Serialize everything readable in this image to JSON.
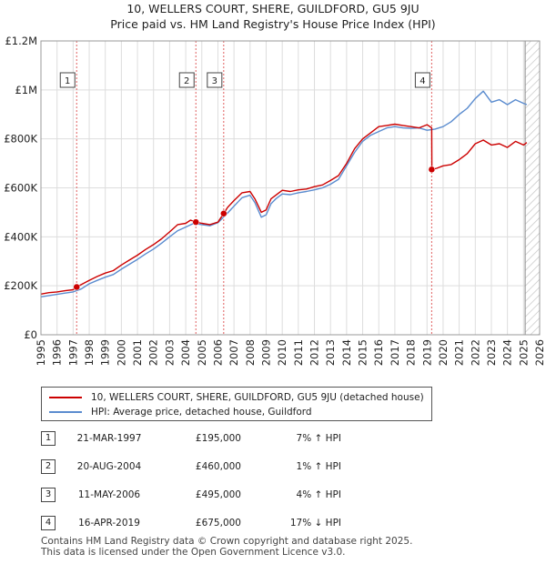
{
  "chart_data": {
    "type": "line",
    "title": "10, WELLERS COURT, SHERE, GUILDFORD, GU5 9JU",
    "subtitle": "Price paid vs. HM Land Registry's House Price Index (HPI)",
    "xlim": [
      1995,
      2026
    ],
    "ylim": [
      0,
      1200000
    ],
    "x_ticks": [
      1995,
      1996,
      1997,
      1998,
      1999,
      2000,
      2001,
      2002,
      2003,
      2004,
      2005,
      2006,
      2007,
      2008,
      2009,
      2010,
      2011,
      2012,
      2013,
      2014,
      2015,
      2016,
      2017,
      2018,
      2019,
      2020,
      2021,
      2022,
      2023,
      2024,
      2025,
      2026
    ],
    "y_ticks": [
      {
        "value": 0,
        "label": "£0"
      },
      {
        "value": 200000,
        "label": "£200K"
      },
      {
        "value": 400000,
        "label": "£400K"
      },
      {
        "value": 600000,
        "label": "£600K"
      },
      {
        "value": 800000,
        "label": "£800K"
      },
      {
        "value": 1000000,
        "label": "£1M"
      },
      {
        "value": 1200000,
        "label": "£1.2M"
      }
    ],
    "grid": true,
    "forecast_from": 2025.1,
    "series": [
      {
        "name": "10, WELLERS COURT, SHERE, GUILDFORD, GU5 9JU (detached house)",
        "color": "#cc0000",
        "x": [
          1995.0,
          1995.5,
          1996.0,
          1996.5,
          1997.0,
          1997.22,
          1998.0,
          1998.5,
          1999.0,
          1999.5,
          2000.0,
          2000.5,
          2001.0,
          2001.5,
          2002.0,
          2002.5,
          2003.0,
          2003.5,
          2004.0,
          2004.3,
          2004.63,
          2005.0,
          2005.5,
          2006.0,
          2006.36,
          2006.6,
          2007.0,
          2007.5,
          2008.0,
          2008.3,
          2008.7,
          2009.0,
          2009.3,
          2009.6,
          2010.0,
          2010.5,
          2011.0,
          2011.5,
          2012.0,
          2012.5,
          2013.0,
          2013.5,
          2014.0,
          2014.5,
          2015.0,
          2015.5,
          2016.0,
          2016.5,
          2017.0,
          2017.5,
          2018.0,
          2018.5,
          2019.0,
          2019.29,
          2019.3,
          2019.6,
          2020.0,
          2020.5,
          2021.0,
          2021.5,
          2022.0,
          2022.5,
          2023.0,
          2023.5,
          2024.0,
          2024.5,
          2025.0,
          2025.2
        ],
        "y": [
          166000,
          172000,
          175000,
          180000,
          184000,
          195000,
          222000,
          238000,
          252000,
          262000,
          285000,
          305000,
          325000,
          348000,
          368000,
          392000,
          420000,
          450000,
          455000,
          468000,
          460000,
          455000,
          450000,
          460000,
          495000,
          520000,
          548000,
          580000,
          585000,
          555000,
          500000,
          510000,
          555000,
          570000,
          590000,
          585000,
          592000,
          595000,
          605000,
          612000,
          630000,
          650000,
          700000,
          760000,
          800000,
          825000,
          850000,
          855000,
          860000,
          855000,
          850000,
          845000,
          858000,
          845000,
          675000,
          680000,
          690000,
          695000,
          715000,
          740000,
          780000,
          795000,
          775000,
          780000,
          765000,
          790000,
          775000,
          785000
        ]
      },
      {
        "name": "HPI: Average price, detached house, Guildford",
        "color": "#5b8ccf",
        "x": [
          1995.0,
          1995.5,
          1996.0,
          1996.5,
          1997.0,
          1997.5,
          1998.0,
          1998.5,
          1999.0,
          1999.5,
          2000.0,
          2000.5,
          2001.0,
          2001.5,
          2002.0,
          2002.5,
          2003.0,
          2003.5,
          2004.0,
          2004.5,
          2005.0,
          2005.5,
          2006.0,
          2006.5,
          2007.0,
          2007.5,
          2008.0,
          2008.3,
          2008.7,
          2009.0,
          2009.3,
          2009.6,
          2010.0,
          2010.5,
          2011.0,
          2011.5,
          2012.0,
          2012.5,
          2013.0,
          2013.5,
          2014.0,
          2014.5,
          2015.0,
          2015.5,
          2016.0,
          2016.5,
          2017.0,
          2017.5,
          2018.0,
          2018.5,
          2019.0,
          2019.5,
          2020.0,
          2020.5,
          2021.0,
          2021.5,
          2022.0,
          2022.5,
          2023.0,
          2023.5,
          2024.0,
          2024.5,
          2025.0,
          2025.2
        ],
        "y": [
          155000,
          160000,
          165000,
          170000,
          175000,
          187000,
          208000,
          222000,
          235000,
          246000,
          268000,
          288000,
          308000,
          330000,
          350000,
          374000,
          400000,
          425000,
          440000,
          455000,
          450000,
          445000,
          458000,
          490000,
          525000,
          560000,
          570000,
          540000,
          480000,
          490000,
          535000,
          555000,
          575000,
          572000,
          580000,
          585000,
          592000,
          600000,
          615000,
          635000,
          690000,
          745000,
          790000,
          815000,
          830000,
          845000,
          850000,
          845000,
          843000,
          845000,
          835000,
          840000,
          850000,
          870000,
          900000,
          925000,
          965000,
          995000,
          950000,
          960000,
          940000,
          960000,
          945000,
          940000
        ]
      }
    ],
    "transactions": [
      {
        "num": "1",
        "x": 1997.22,
        "y": 195000,
        "date": "21-MAR-1997",
        "price": "£195,000",
        "hpi": "7% ↑ HPI"
      },
      {
        "num": "2",
        "x": 2004.63,
        "y": 460000,
        "date": "20-AUG-2004",
        "price": "£460,000",
        "hpi": "1% ↑ HPI"
      },
      {
        "num": "3",
        "x": 2006.36,
        "y": 495000,
        "date": "11-MAY-2006",
        "price": "£495,000",
        "hpi": "4% ↑ HPI"
      },
      {
        "num": "4",
        "x": 2019.29,
        "y": 675000,
        "date": "16-APR-2019",
        "price": "£675,000",
        "hpi": "17% ↓ HPI"
      }
    ]
  },
  "legend": {
    "property": "10, WELLERS COURT, SHERE, GUILDFORD, GU5 9JU (detached house)",
    "hpi": "HPI: Average price, detached house, Guildford"
  },
  "colors": {
    "property": "#cc0000",
    "hpi": "#5b8ccf",
    "grid": "#dddddd",
    "marker_line": "#e06060"
  },
  "footer": {
    "line1": "Contains HM Land Registry data © Crown copyright and database right 2025.",
    "line2": "This data is licensed under the Open Government Licence v3.0."
  }
}
